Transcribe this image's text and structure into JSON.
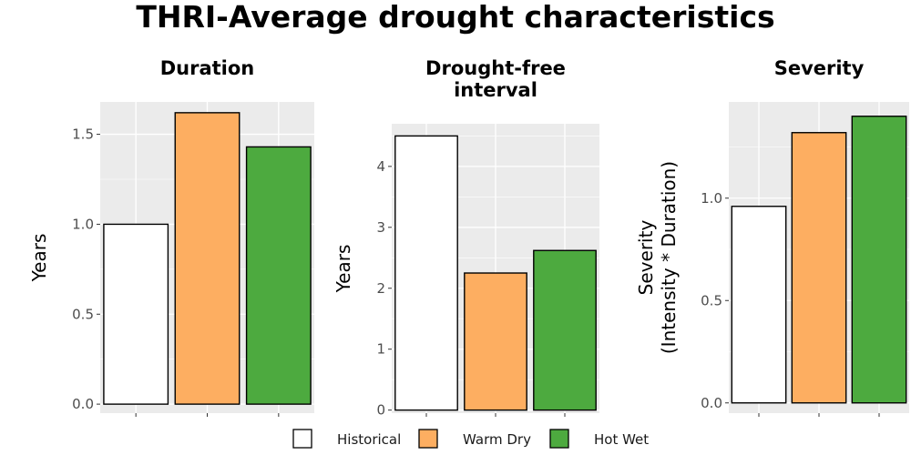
{
  "title": "THRI-Average drought characteristics",
  "colors": {
    "Historical": "#ffffff",
    "Warm Dry": "#fdae61",
    "Hot Wet": "#4daa3f",
    "panel_bg": "#ebebeb",
    "grid": "#ffffff",
    "bar_edge": "#000000"
  },
  "legend": {
    "items": [
      "Historical",
      "Warm Dry",
      "Hot Wet"
    ],
    "placement": "bottom"
  },
  "chart_data": [
    {
      "type": "bar",
      "title": "Duration",
      "ylabel": "Years",
      "categories": [
        "Historical",
        "Warm Dry",
        "Hot Wet"
      ],
      "values": [
        1.0,
        1.62,
        1.43
      ],
      "ylim": [
        -0.05,
        1.68
      ],
      "yticks": [
        0.0,
        0.5,
        1.0,
        1.5
      ],
      "ytick_labels": [
        "0.0",
        "0.5",
        "1.0",
        "1.5"
      ],
      "grid": true
    },
    {
      "type": "bar",
      "title": [
        "Drought-free",
        "interval"
      ],
      "ylabel": "Years",
      "categories": [
        "Historical",
        "Warm Dry",
        "Hot Wet"
      ],
      "values": [
        4.5,
        2.25,
        2.62
      ],
      "ylim": [
        -0.05,
        4.7
      ],
      "yticks": [
        0,
        1,
        2,
        3,
        4
      ],
      "ytick_labels": [
        "0",
        "1",
        "2",
        "3",
        "4"
      ],
      "grid": true
    },
    {
      "type": "bar",
      "title": "Severity",
      "ylabel": [
        "Severity",
        "(Intensity * Duration)"
      ],
      "categories": [
        "Historical",
        "Warm Dry",
        "Hot Wet"
      ],
      "values": [
        0.96,
        1.32,
        1.4
      ],
      "ylim": [
        -0.05,
        1.47
      ],
      "yticks": [
        0.0,
        0.5,
        1.0
      ],
      "ytick_labels": [
        "0.0",
        "0.5",
        "1.0"
      ],
      "grid": true
    }
  ]
}
